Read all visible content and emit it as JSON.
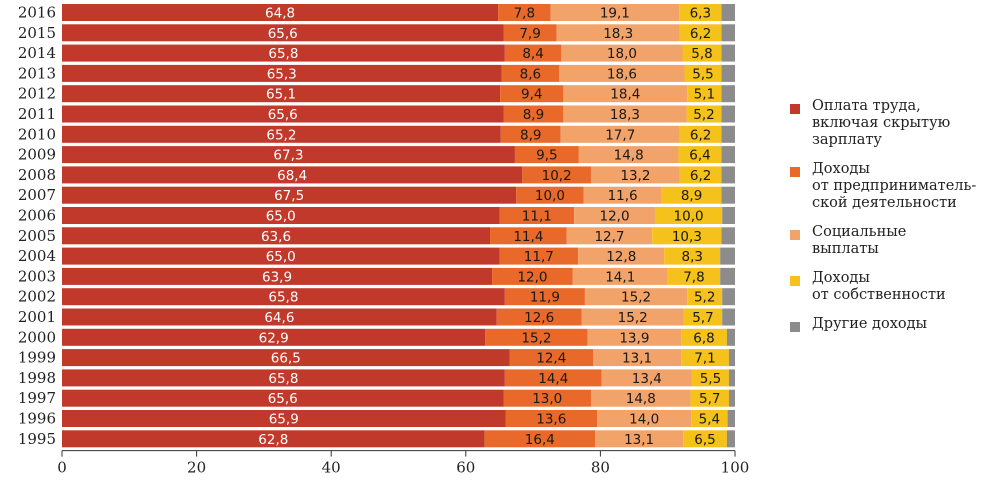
{
  "chart_data": {
    "type": "bar",
    "orientation": "horizontal",
    "stacked": true,
    "title": "",
    "xlabel": "",
    "ylabel": "",
    "xlim": [
      0,
      100
    ],
    "x_ticks": [
      "0",
      "20",
      "40",
      "60",
      "80",
      "100"
    ],
    "grid": false,
    "legend_position": "right",
    "categories": [
      "2016",
      "2015",
      "2014",
      "2013",
      "2012",
      "2011",
      "2010",
      "2009",
      "2008",
      "2007",
      "2006",
      "2005",
      "2004",
      "2003",
      "2002",
      "2001",
      "2000",
      "1999",
      "1998",
      "1997",
      "1996",
      "1995"
    ],
    "series": [
      {
        "name": "Оплата труда,\nвключая скрытую\nзарплату",
        "color": "#c0392b",
        "label_color": "#ffffff",
        "values": [
          64.8,
          65.6,
          65.8,
          65.3,
          65.1,
          65.6,
          65.2,
          67.3,
          68.4,
          67.5,
          65.0,
          63.6,
          65.0,
          63.9,
          65.8,
          64.6,
          62.9,
          66.5,
          65.8,
          65.6,
          65.9,
          62.8
        ],
        "labels": [
          "64,8",
          "65,6",
          "65,8",
          "65,3",
          "65,1",
          "65,6",
          "65,2",
          "67,3",
          "68,4",
          "67,5",
          "65,0",
          "63,6",
          "65,0",
          "63,9",
          "65,8",
          "64,6",
          "62,9",
          "66,5",
          "65,8",
          "65,6",
          "65,9",
          "62,8"
        ]
      },
      {
        "name": "Доходы\nот предприниматель-\nской деятельности",
        "color": "#e8692a",
        "label_color": "#1a1a1a",
        "values": [
          7.8,
          7.9,
          8.4,
          8.6,
          9.4,
          8.9,
          8.9,
          9.5,
          10.2,
          10.0,
          11.1,
          11.4,
          11.7,
          12.0,
          11.9,
          12.6,
          15.2,
          12.4,
          14.4,
          13.0,
          13.6,
          16.4
        ],
        "labels": [
          "7,8",
          "7,9",
          "8,4",
          "8,6",
          "9,4",
          "8,9",
          "8,9",
          "9,5",
          "10,2",
          "10,0",
          "11,1",
          "11,4",
          "11,7",
          "12,0",
          "11,9",
          "12,6",
          "15,2",
          "12,4",
          "14,4",
          "13,0",
          "13,6",
          "16,4"
        ]
      },
      {
        "name": "Социальные\nвыплаты",
        "color": "#f2a36a",
        "label_color": "#1a1a1a",
        "values": [
          19.1,
          18.3,
          18.0,
          18.6,
          18.4,
          18.3,
          17.7,
          14.8,
          13.2,
          11.6,
          12.0,
          12.7,
          12.8,
          14.1,
          15.2,
          15.2,
          13.9,
          13.1,
          13.4,
          14.8,
          14.0,
          13.1
        ],
        "labels": [
          "19,1",
          "18,3",
          "18,0",
          "18,6",
          "18,4",
          "18,3",
          "17,7",
          "14,8",
          "13,2",
          "11,6",
          "12,0",
          "12,7",
          "12,8",
          "14,1",
          "15,2",
          "15,2",
          "13,9",
          "13,1",
          "13,4",
          "14,8",
          "14,0",
          "13,1"
        ]
      },
      {
        "name": "Доходы\nот собственности",
        "color": "#f5c11b",
        "label_color": "#1a1a1a",
        "values": [
          6.3,
          6.2,
          5.8,
          5.5,
          5.1,
          5.2,
          6.2,
          6.4,
          6.2,
          8.9,
          10.0,
          10.3,
          8.3,
          7.8,
          5.2,
          5.7,
          6.8,
          7.1,
          5.5,
          5.7,
          5.4,
          6.5
        ],
        "labels": [
          "6,3",
          "6,2",
          "5,8",
          "5,5",
          "5,1",
          "5,2",
          "6,2",
          "6,4",
          "6,2",
          "8,9",
          "10,0",
          "10,3",
          "8,3",
          "7,8",
          "5,2",
          "5,7",
          "6,8",
          "7,1",
          "5,5",
          "5,7",
          "5,4",
          "6,5"
        ]
      },
      {
        "name": "Другие доходы",
        "color": "#8c8c8c",
        "label_color": "#1a1a1a",
        "values": [
          2.0,
          2.0,
          2.0,
          2.0,
          2.0,
          2.0,
          2.0,
          2.0,
          2.0,
          2.0,
          1.9,
          2.0,
          2.2,
          2.2,
          1.9,
          1.9,
          1.2,
          0.9,
          0.9,
          0.9,
          1.1,
          1.2
        ],
        "labels": []
      }
    ]
  }
}
